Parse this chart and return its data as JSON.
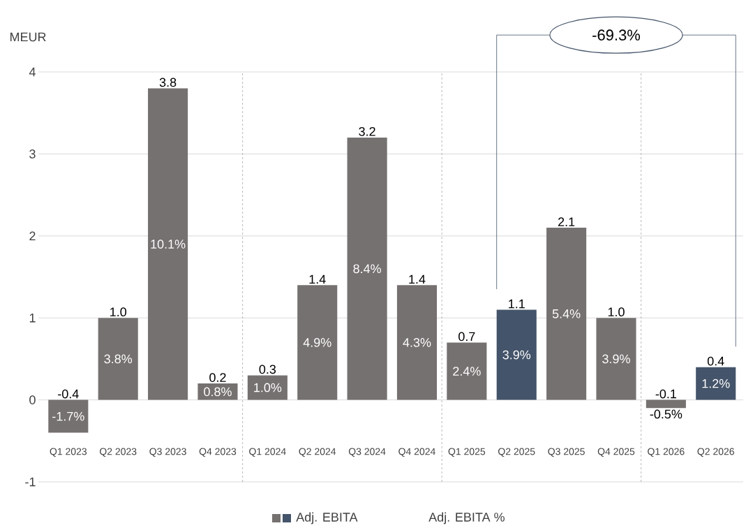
{
  "chart_data": {
    "type": "bar",
    "ylabel": "MEUR",
    "categories": [
      "Q1 2023",
      "Q2 2023",
      "Q3 2023",
      "Q4 2023",
      "Q1 2024",
      "Q2 2024",
      "Q3 2024",
      "Q4 2024",
      "Q1 2025",
      "Q2 2025",
      "Q3 2025",
      "Q4 2025",
      "Q1 2026",
      "Q2 2026"
    ],
    "series": [
      {
        "name": "Adj. EBITA",
        "colors": [
          "#767171",
          "#767171",
          "#767171",
          "#767171",
          "#767171",
          "#767171",
          "#767171",
          "#767171",
          "#767171",
          "#44546a",
          "#767171",
          "#767171",
          "#767171",
          "#44546a"
        ],
        "values": [
          -0.4,
          1.0,
          3.8,
          0.2,
          0.3,
          1.4,
          3.2,
          1.4,
          0.7,
          1.1,
          2.1,
          1.0,
          -0.1,
          0.4
        ],
        "value_labels": [
          "-0.4",
          "1.0",
          "3.8",
          "0.2",
          "0.3",
          "1.4",
          "3.2",
          "1.4",
          "0.7",
          "1.1",
          "2.1",
          "1.0",
          "-0.1",
          "0.4"
        ]
      }
    ],
    "ylim": [
      -1,
      4
    ],
    "yticks": [
      -1,
      0,
      1,
      2,
      3,
      4
    ],
    "grid": "y",
    "legend": "bottom",
    "annotations": [
      "-69.3%",
      "Adj. EBITA %",
      "-1.7%",
      "3.8%",
      "10.1%",
      "0.8%",
      "1.0%",
      "4.9%",
      "8.4%",
      "4.3%",
      "2.4%",
      "3.9%",
      "5.4%",
      "3.9%",
      "-0.5%",
      "1.2%"
    ]
  }
}
